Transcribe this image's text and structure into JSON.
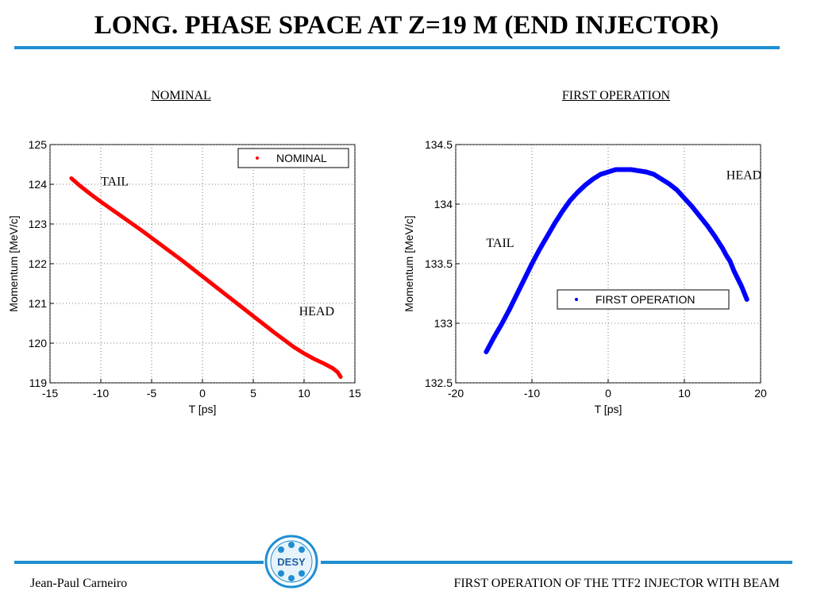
{
  "slide": {
    "title": "LONG. PHASE SPACE AT Z=19 M (END INJECTOR)",
    "footer_left": "Jean-Paul Carneiro",
    "footer_right": "FIRST OPERATION OF THE TTF2 INJECTOR WITH BEAM",
    "logo_text": "DESY",
    "accent_color": "#1f8ed1"
  },
  "chart_data": [
    {
      "type": "scatter",
      "caption": "NOMINAL",
      "xlabel": "T [ps]",
      "ylabel": "Momentum [MeV/c]",
      "xlim": [
        -15,
        15
      ],
      "ylim": [
        119,
        125
      ],
      "xticks": [
        "-15",
        "-10",
        "-5",
        "0",
        "5",
        "10",
        "15"
      ],
      "yticks": [
        "119",
        "120",
        "121",
        "122",
        "123",
        "124",
        "125"
      ],
      "grid": true,
      "legend_position": "top-right",
      "series": [
        {
          "name": "NOMINAL",
          "color": "#ff0000",
          "x": [
            -12.9,
            -12,
            -11,
            -10,
            -9,
            -8,
            -7,
            -6,
            -5,
            -4,
            -3,
            -2,
            -1,
            0,
            1,
            2,
            3,
            4,
            5,
            6,
            7,
            8,
            9,
            10,
            11,
            12,
            12.8,
            13.3,
            13.6
          ],
          "y": [
            124.15,
            123.95,
            123.75,
            123.56,
            123.38,
            123.2,
            123.02,
            122.84,
            122.65,
            122.46,
            122.27,
            122.08,
            121.88,
            121.68,
            121.48,
            121.28,
            121.08,
            120.88,
            120.68,
            120.48,
            120.28,
            120.09,
            119.9,
            119.74,
            119.6,
            119.48,
            119.37,
            119.27,
            119.15
          ]
        }
      ],
      "annotations": [
        {
          "text": "TAIL",
          "x": -10,
          "y": 123.97
        },
        {
          "text": "HEAD",
          "x": 9.5,
          "y": 120.7
        }
      ]
    },
    {
      "type": "scatter",
      "caption": "FIRST OPERATION",
      "xlabel": "T [ps]",
      "ylabel": "Momentum [MeV/c]",
      "xlim": [
        -20,
        20
      ],
      "ylim": [
        132.5,
        134.5
      ],
      "xticks": [
        "-20",
        "-10",
        "0",
        "10",
        "20"
      ],
      "yticks": [
        "132.5",
        "133",
        "133.5",
        "134",
        "134.5"
      ],
      "grid": true,
      "legend_position": "middle-right",
      "series": [
        {
          "name": "FIRST OPERATION",
          "color": "#0000ff",
          "x": [
            -16,
            -15,
            -14,
            -13,
            -12,
            -11,
            -10,
            -9,
            -8,
            -7,
            -6,
            -5,
            -4,
            -3,
            -2,
            -1,
            0,
            1,
            2,
            3,
            4,
            5,
            6,
            7,
            8,
            9,
            10,
            11,
            12,
            13,
            14,
            15,
            15.5,
            16,
            16.5,
            17.5,
            18.2
          ],
          "y": [
            132.76,
            132.88,
            132.99,
            133.11,
            133.24,
            133.37,
            133.5,
            133.62,
            133.73,
            133.84,
            133.94,
            134.03,
            134.1,
            134.16,
            134.21,
            134.25,
            134.27,
            134.29,
            134.29,
            134.29,
            134.28,
            134.27,
            134.25,
            134.21,
            134.17,
            134.12,
            134.05,
            133.98,
            133.9,
            133.82,
            133.73,
            133.63,
            133.57,
            133.52,
            133.44,
            133.31,
            133.2
          ]
        }
      ],
      "annotations": [
        {
          "text": "HEAD",
          "x": 15.5,
          "y": 134.21
        },
        {
          "text": "TAIL",
          "x": -16,
          "y": 133.64
        }
      ]
    }
  ]
}
